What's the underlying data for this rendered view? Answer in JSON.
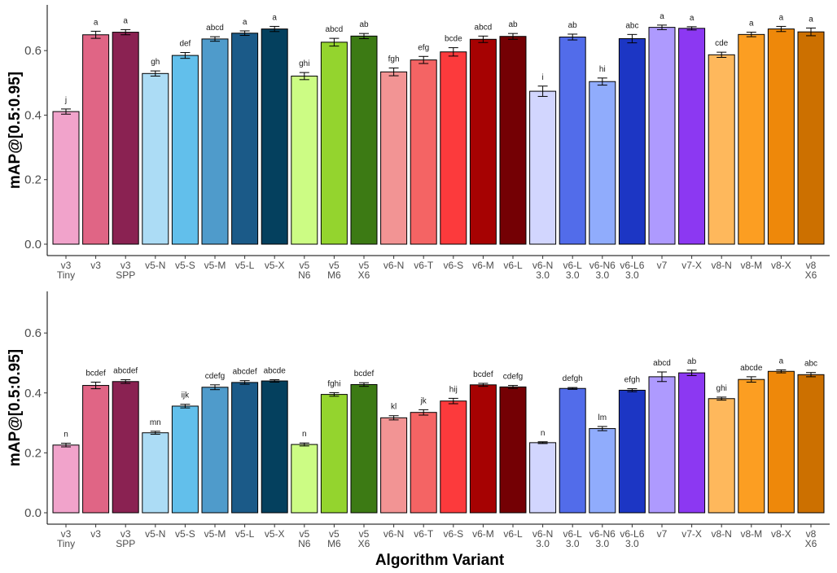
{
  "chart_data": {
    "type": "bar",
    "xlabel": "Algorithm Variant",
    "categories": [
      [
        "v3",
        "Tiny"
      ],
      [
        "v3"
      ],
      [
        "v3",
        "SPP"
      ],
      [
        "v5-N"
      ],
      [
        "v5-S"
      ],
      [
        "v5-M"
      ],
      [
        "v5-L"
      ],
      [
        "v5-X"
      ],
      [
        "v5",
        "N6"
      ],
      [
        "v5",
        "M6"
      ],
      [
        "v5",
        "X6"
      ],
      [
        "v6-N"
      ],
      [
        "v6-T"
      ],
      [
        "v6-S"
      ],
      [
        "v6-M"
      ],
      [
        "v6-L"
      ],
      [
        "v6-N",
        "3.0"
      ],
      [
        "v6-L",
        "3.0"
      ],
      [
        "v6-N6",
        "3.0"
      ],
      [
        "v6-L6",
        "3.0"
      ],
      [
        "v7"
      ],
      [
        "v7-X"
      ],
      [
        "v8-N"
      ],
      [
        "v8-M"
      ],
      [
        "v8-X"
      ],
      [
        "v8",
        "X6"
      ]
    ],
    "colors": [
      "#f1a3cb",
      "#e06585",
      "#8a2252",
      "#acdcf5",
      "#62bfeb",
      "#4f9bcb",
      "#1b5a88",
      "#04405e",
      "#ccfc84",
      "#94d42e",
      "#3c7a14",
      "#f29494",
      "#f46464",
      "#fc3a3c",
      "#a60202",
      "#740004",
      "#d2d6fe",
      "#526cea",
      "#90acfc",
      "#1c36c4",
      "#ae9afe",
      "#8c38f2",
      "#feb85c",
      "#fc9e22",
      "#ee880a",
      "#cc7000"
    ],
    "panels": [
      {
        "ylabel": "mAP@[0.5:0.95]",
        "ylim": [
          0,
          0.74
        ],
        "yticks": [
          "0.0",
          "0.2",
          "0.4",
          "0.6"
        ],
        "values": [
          0.411,
          0.649,
          0.657,
          0.529,
          0.585,
          0.636,
          0.654,
          0.667,
          0.521,
          0.626,
          0.645,
          0.534,
          0.571,
          0.596,
          0.635,
          0.644,
          0.474,
          0.642,
          0.504,
          0.637,
          0.672,
          0.669,
          0.587,
          0.65,
          0.667,
          0.658
        ],
        "errors": [
          0.008,
          0.011,
          0.008,
          0.008,
          0.009,
          0.007,
          0.007,
          0.008,
          0.011,
          0.012,
          0.008,
          0.012,
          0.011,
          0.013,
          0.01,
          0.009,
          0.016,
          0.009,
          0.011,
          0.013,
          0.007,
          0.005,
          0.008,
          0.007,
          0.008,
          0.012
        ],
        "letters": [
          "j",
          "a",
          "a",
          "gh",
          "def",
          "abcd",
          "a",
          "a",
          "ghi",
          "abcd",
          "ab",
          "fgh",
          "efg",
          "bcde",
          "abcd",
          "ab",
          "i",
          "ab",
          "hi",
          "abc",
          "a",
          "a",
          "cde",
          "a",
          "a",
          "a"
        ]
      },
      {
        "ylabel": "mAP@[0.5:0.95]",
        "ylim": [
          0,
          0.74
        ],
        "yticks": [
          "0.0",
          "0.2",
          "0.4",
          "0.6"
        ],
        "values": [
          0.226,
          0.425,
          0.438,
          0.267,
          0.356,
          0.419,
          0.435,
          0.44,
          0.228,
          0.395,
          0.428,
          0.317,
          0.335,
          0.373,
          0.427,
          0.42,
          0.234,
          0.415,
          0.281,
          0.409,
          0.454,
          0.467,
          0.381,
          0.445,
          0.472,
          0.461
        ],
        "errors": [
          0.006,
          0.011,
          0.006,
          0.005,
          0.006,
          0.008,
          0.006,
          0.004,
          0.005,
          0.006,
          0.006,
          0.007,
          0.009,
          0.009,
          0.005,
          0.005,
          0.003,
          0.003,
          0.007,
          0.005,
          0.016,
          0.009,
          0.005,
          0.009,
          0.005,
          0.007
        ],
        "letters": [
          "n",
          "bcdef",
          "abcdef",
          "mn",
          "ijk",
          "cdefg",
          "abcdef",
          "abcde",
          "n",
          "fghi",
          "bcdef",
          "kl",
          "jk",
          "hij",
          "bcdef",
          "cdefg",
          "n",
          "defgh",
          "lm",
          "efgh",
          "abcd",
          "ab",
          "ghi",
          "abcde",
          "a",
          "abc"
        ]
      }
    ]
  }
}
